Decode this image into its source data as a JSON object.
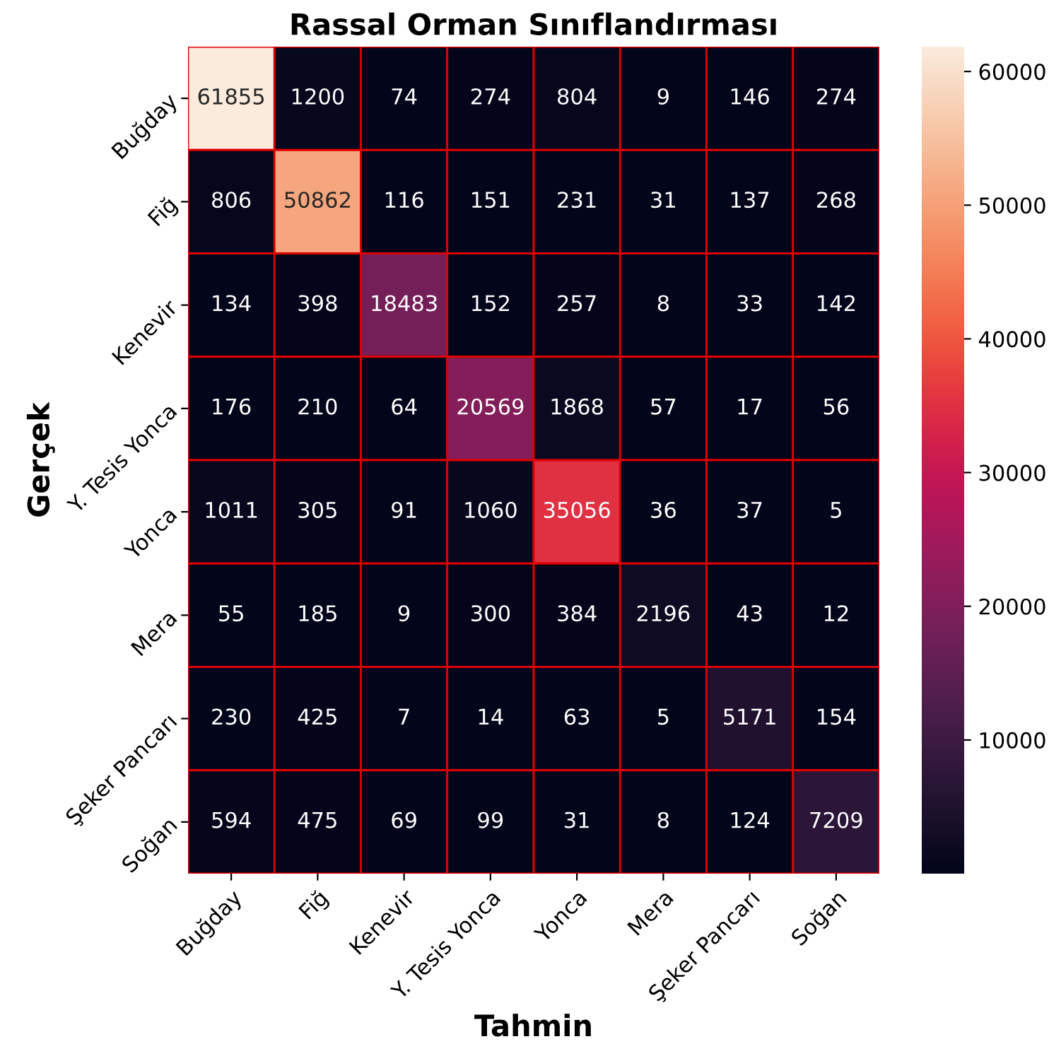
{
  "chart_data": {
    "type": "heatmap",
    "title": "Rassal Orman Sınıflandırması",
    "xlabel": "Tahmin",
    "ylabel": "Gerçek",
    "categories": [
      "Buğday",
      "Fiğ",
      "Kenevir",
      "Y. Tesis Yonca",
      "Yonca",
      "Mera",
      "Şeker Pancarı",
      "Soğan"
    ],
    "y_categories": [
      "Buğday",
      "Fiğ",
      "Kenevir",
      "Y. Tesis Yonca",
      "Yonca",
      "Mera",
      "Şeker Pancarı",
      "Soğan"
    ],
    "cells": [
      [
        61855,
        1200,
        74,
        274,
        804,
        9,
        146,
        274
      ],
      [
        806,
        50862,
        116,
        151,
        231,
        31,
        137,
        268
      ],
      [
        134,
        398,
        18483,
        152,
        257,
        8,
        33,
        142
      ],
      [
        176,
        210,
        64,
        20569,
        1868,
        57,
        17,
        56
      ],
      [
        1011,
        305,
        91,
        1060,
        35056,
        36,
        37,
        5
      ],
      [
        55,
        185,
        9,
        300,
        384,
        2196,
        43,
        12
      ],
      [
        230,
        425,
        7,
        14,
        63,
        5,
        5171,
        154
      ],
      [
        594,
        475,
        69,
        99,
        31,
        8,
        124,
        7209
      ]
    ],
    "clim": [
      5,
      61855
    ],
    "cticks": [
      10000,
      20000,
      30000,
      40000,
      50000,
      60000
    ],
    "data_labels": true
  }
}
